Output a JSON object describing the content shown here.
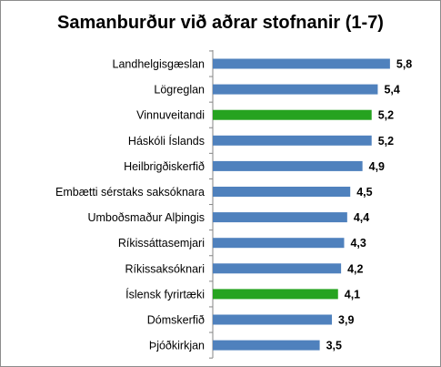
{
  "chart_data": {
    "type": "bar",
    "orientation": "horizontal",
    "title": "Samanburður við aðrar stofnanir (1-7)",
    "categories": [
      "Landhelgisgæslan",
      "Lögreglan",
      "Vinnuveitandi",
      "Háskóli Íslands",
      "Heilbrigðiskerfið",
      "Embætti sérstaks saksóknara",
      "Umboðsmaður Alþingis",
      "Ríkissáttasemjari",
      "Ríkissaksóknari",
      "Íslensk fyrirtæki",
      "Dómskerfið",
      "Þjóðkirkjan"
    ],
    "values": [
      5.8,
      5.4,
      5.2,
      5.2,
      4.9,
      4.5,
      4.4,
      4.3,
      4.2,
      4.1,
      3.9,
      3.5
    ],
    "value_labels": [
      "5,8",
      "5,4",
      "5,2",
      "5,2",
      "4,9",
      "4,5",
      "4,4",
      "4,3",
      "4,2",
      "4,1",
      "3,9",
      "3,5"
    ],
    "highlighted": [
      "Vinnuveitandi",
      "Íslensk fyrirtæki"
    ],
    "colors": {
      "default": "#4F81BD",
      "highlight": "#26A320",
      "axis": "#868686"
    },
    "xlim": [
      0,
      6.5
    ],
    "grid": false,
    "legend": "none",
    "xlabel": "",
    "ylabel": ""
  }
}
